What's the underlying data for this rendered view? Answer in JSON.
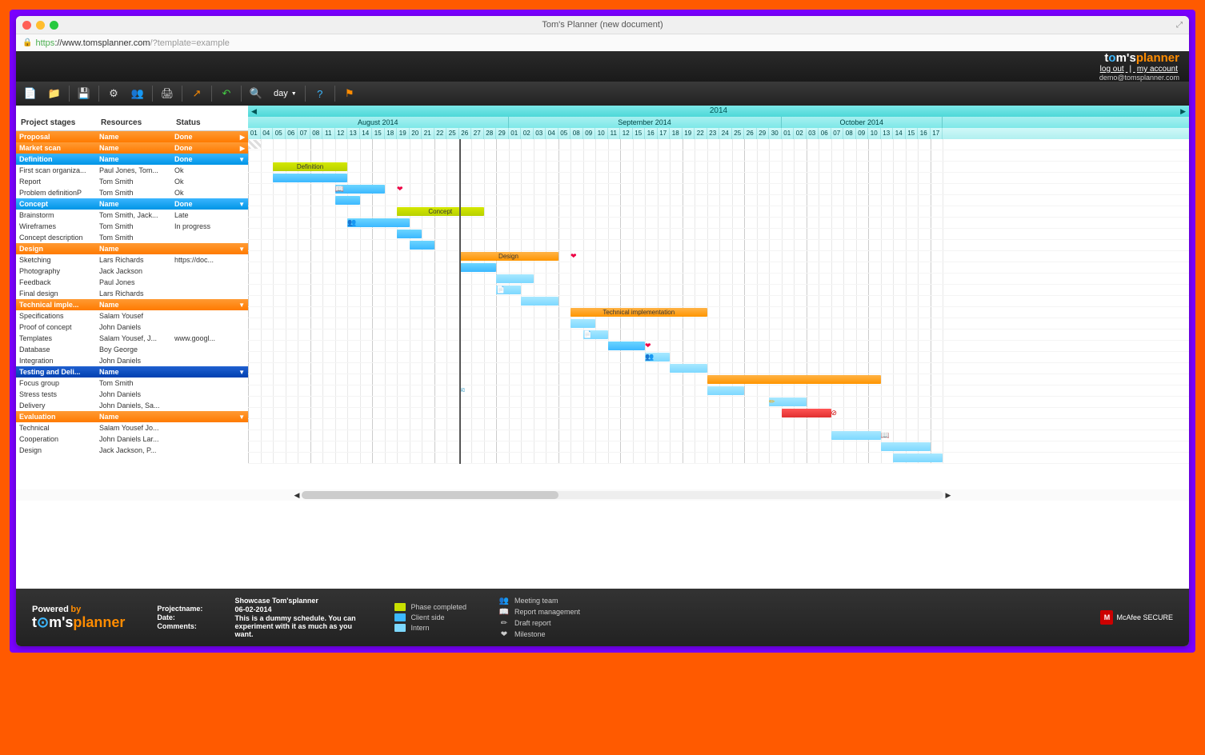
{
  "window": {
    "title": "Tom's Planner (new document)",
    "url_proto": "https",
    "url_host": "://www.tomsplanner.com",
    "url_path": "/?template=example"
  },
  "header": {
    "logo_t": "t",
    "logo_o": "o",
    "logo_ms": "m's",
    "logo_planner": "planner",
    "logout": "log out",
    "myaccount": "my account",
    "email": "demo@tomsplanner.com"
  },
  "toolbar": {
    "day_label": "day"
  },
  "sidebar": {
    "col_stages": "Project stages",
    "col_resources": "Resources",
    "col_status": "Status",
    "groups": [
      {
        "id": "proposal",
        "cls": "g-orange",
        "chev": "▶",
        "c1": "Proposal",
        "c2": "Name",
        "c3": "Done",
        "rows": []
      },
      {
        "id": "market",
        "cls": "g-orange",
        "chev": "▶",
        "c1": "Market scan",
        "c2": "Name",
        "c3": "Done",
        "rows": []
      },
      {
        "id": "definition",
        "cls": "g-blue",
        "chev": "▼",
        "c1": "Definition",
        "c2": "Name",
        "c3": "Done",
        "rows": [
          {
            "r1": "First scan organiza...",
            "r2": "Paul Jones, Tom...",
            "r3": "Ok"
          },
          {
            "r1": "Report",
            "r2": "Tom Smith",
            "r3": "Ok"
          },
          {
            "r1": "Problem definitionP",
            "r2": "Tom Smith",
            "r3": "Ok"
          }
        ]
      },
      {
        "id": "concept",
        "cls": "g-blue",
        "chev": "▼",
        "c1": "Concept",
        "c2": "Name",
        "c3": "Done",
        "rows": [
          {
            "r1": "Brainstorm",
            "r2": "Tom Smith, Jack...",
            "r3": "Late"
          },
          {
            "r1": "Wireframes",
            "r2": "Tom Smith",
            "r3": "In progress"
          },
          {
            "r1": "Concept description",
            "r2": "Tom Smith",
            "r3": ""
          }
        ]
      },
      {
        "id": "design",
        "cls": "g-orange",
        "chev": "▼",
        "c1": "Design",
        "c2": "Name",
        "c3": "",
        "rows": [
          {
            "r1": "Sketching",
            "r2": "Lars Richards",
            "r3": "https://doc..."
          },
          {
            "r1": "Photography",
            "r2": "Jack Jackson",
            "r3": ""
          },
          {
            "r1": "Feedback",
            "r2": "Paul Jones",
            "r3": ""
          },
          {
            "r1": "Final design",
            "r2": "Lars Richards",
            "r3": ""
          }
        ]
      },
      {
        "id": "tech",
        "cls": "g-orange",
        "chev": "▼",
        "c1": "Technical imple...",
        "c2": "Name",
        "c3": "",
        "rows": [
          {
            "r1": "Specifications",
            "r2": "Salam Yousef",
            "r3": ""
          },
          {
            "r1": "Proof of concept",
            "r2": "John Daniels",
            "r3": ""
          },
          {
            "r1": "Templates",
            "r2": "Salam Yousef, J...",
            "r3": "www.googl..."
          },
          {
            "r1": "Database",
            "r2": "Boy George",
            "r3": ""
          },
          {
            "r1": "Integration",
            "r2": "John Daniels",
            "r3": ""
          }
        ]
      },
      {
        "id": "testing",
        "cls": "g-dblue",
        "chev": "▼",
        "c1": "Testing and Deli...",
        "c2": "Name",
        "c3": "",
        "rows": [
          {
            "r1": "Focus group",
            "r2": "Tom Smith",
            "r3": ""
          },
          {
            "r1": "Stress tests",
            "r2": "John Daniels",
            "r3": ""
          },
          {
            "r1": "Delivery",
            "r2": "John Daniels, Sa...",
            "r3": ""
          }
        ]
      },
      {
        "id": "eval",
        "cls": "g-orange",
        "chev": "▼",
        "c1": "Evaluation",
        "c2": "Name",
        "c3": "",
        "rows": [
          {
            "r1": "Technical",
            "r2": "Salam Yousef Jo...",
            "r3": ""
          },
          {
            "r1": "Cooperation",
            "r2": "John Daniels Lar...",
            "r3": ""
          },
          {
            "r1": "Design",
            "r2": "Jack Jackson, P...",
            "r3": ""
          }
        ]
      }
    ]
  },
  "timeline": {
    "year": "2014",
    "months": [
      {
        "label": "August 2014",
        "span": 31
      },
      {
        "label": "September 2014",
        "span": 30
      },
      {
        "label": "October 2014",
        "span": 17
      }
    ],
    "days": [
      "01",
      "04",
      "05",
      "06",
      "07",
      "08",
      "11",
      "12",
      "13",
      "14",
      "15",
      "18",
      "19",
      "20",
      "21",
      "22",
      "25",
      "26",
      "27",
      "28",
      "29",
      "01",
      "02",
      "03",
      "04",
      "05",
      "08",
      "09",
      "10",
      "11",
      "12",
      "15",
      "16",
      "17",
      "18",
      "19",
      "22",
      "23",
      "24",
      "25",
      "26",
      "29",
      "30",
      "01",
      "02",
      "03",
      "06",
      "07",
      "08",
      "09",
      "10",
      "13",
      "14",
      "15",
      "16",
      "17"
    ],
    "today_col": 17,
    "day_width": 15.5,
    "gantt_rows": [
      {
        "type": "hdr"
      },
      {
        "type": "hdr"
      },
      {
        "type": "hdr",
        "bars": [
          {
            "cls": "bar-green",
            "start": 2,
            "len": 6,
            "label": "Definition"
          }
        ]
      },
      {
        "bars": [
          {
            "cls": "bar-cyan",
            "start": 2,
            "len": 6
          }
        ]
      },
      {
        "bars": [
          {
            "cls": "bar-cyan",
            "start": 7,
            "len": 4
          }
        ],
        "icons": [
          {
            "ico": "📖",
            "col": 7
          },
          {
            "ico": "❤",
            "col": 12,
            "color": "#e04"
          }
        ]
      },
      {
        "bars": [
          {
            "cls": "bar-cyan",
            "start": 7,
            "len": 2
          }
        ]
      },
      {
        "type": "hdr",
        "bars": [
          {
            "cls": "bar-green",
            "start": 12,
            "len": 7,
            "label": "Concept"
          }
        ]
      },
      {
        "bars": [
          {
            "cls": "bar-cyan",
            "start": 8,
            "len": 5
          }
        ],
        "icons": [
          {
            "ico": "👥",
            "col": 8
          }
        ]
      },
      {
        "bars": [
          {
            "cls": "bar-cyan",
            "start": 12,
            "len": 2
          }
        ]
      },
      {
        "bars": [
          {
            "cls": "bar-cyan",
            "start": 13,
            "len": 2
          }
        ]
      },
      {
        "type": "hdr",
        "bars": [
          {
            "cls": "bar-orange",
            "start": 17,
            "len": 8,
            "label": "Design"
          }
        ],
        "icons": [
          {
            "ico": "❤",
            "col": 26,
            "color": "#e04"
          }
        ]
      },
      {
        "bars": [
          {
            "cls": "bar-cyan",
            "start": 17,
            "len": 3
          }
        ]
      },
      {
        "bars": [
          {
            "cls": "bar-lcyan",
            "start": 20,
            "len": 3
          }
        ]
      },
      {
        "bars": [
          {
            "cls": "bar-lcyan",
            "start": 20,
            "len": 2
          }
        ],
        "icons": [
          {
            "ico": "📄",
            "col": 20
          }
        ]
      },
      {
        "bars": [
          {
            "cls": "bar-lcyan",
            "start": 22,
            "len": 3
          }
        ]
      },
      {
        "type": "hdr",
        "bars": [
          {
            "cls": "bar-orange",
            "start": 26,
            "len": 11,
            "label": "Technical implementation"
          }
        ]
      },
      {
        "bars": [
          {
            "cls": "bar-lcyan",
            "start": 26,
            "len": 2
          }
        ]
      },
      {
        "bars": [
          {
            "cls": "bar-lcyan",
            "start": 27,
            "len": 2
          }
        ],
        "icons": [
          {
            "ico": "📄",
            "col": 27
          }
        ]
      },
      {
        "bars": [
          {
            "cls": "bar-cyan",
            "start": 29,
            "len": 3
          }
        ],
        "icons": [
          {
            "ico": "❤",
            "col": 32,
            "color": "#e04"
          }
        ]
      },
      {
        "bars": [
          {
            "cls": "bar-lcyan",
            "start": 32,
            "len": 2
          }
        ],
        "icons": [
          {
            "ico": "👥",
            "col": 32
          }
        ]
      },
      {
        "bars": [
          {
            "cls": "bar-lcyan",
            "start": 34,
            "len": 3
          }
        ]
      },
      {
        "type": "hdr",
        "bars": [
          {
            "cls": "bar-orange",
            "start": 37,
            "len": 14,
            "label": ""
          }
        ]
      },
      {
        "bars": [
          {
            "cls": "bar-lcyan",
            "start": 37,
            "len": 3
          }
        ],
        "icons": [
          {
            "ico": "✉",
            "col": 17,
            "color": "#5ac"
          }
        ]
      },
      {
        "bars": [
          {
            "cls": "bar-lcyan",
            "start": 42,
            "len": 3
          }
        ],
        "icons": [
          {
            "ico": "✏",
            "col": 42,
            "color": "#fa0"
          }
        ]
      },
      {
        "bars": [
          {
            "cls": "bar-red",
            "start": 43,
            "len": 4
          }
        ],
        "icons": [
          {
            "ico": "⊘",
            "col": 47,
            "color": "#c00"
          }
        ]
      },
      {
        "type": "hdr"
      },
      {
        "bars": [
          {
            "cls": "bar-lcyan",
            "start": 47,
            "len": 4
          }
        ],
        "icons": [
          {
            "ico": "📖",
            "col": 51
          }
        ]
      },
      {
        "bars": [
          {
            "cls": "bar-lcyan",
            "start": 51,
            "len": 4
          }
        ]
      },
      {
        "bars": [
          {
            "cls": "bar-lcyan",
            "start": 52,
            "len": 4
          }
        ]
      }
    ]
  },
  "footer": {
    "powered": "Powered",
    "by": "by",
    "meta": {
      "projectname_l": "Projectname:",
      "projectname_v": "Showcase Tom'splanner",
      "date_l": "Date:",
      "date_v": "06-02-2014",
      "comments_l": "Comments:",
      "comments_v": "This is a dummy schedule. You can experiment with it as much as you want."
    },
    "legend1": [
      {
        "color": "#c8e000",
        "label": "Phase completed"
      },
      {
        "color": "#3cb8ff",
        "label": "Client side"
      },
      {
        "color": "#7dd8ff",
        "label": "Intern"
      }
    ],
    "legend2": [
      {
        "ico": "👥",
        "label": "Meeting team"
      },
      {
        "ico": "📖",
        "label": "Report management"
      },
      {
        "ico": "✏",
        "label": "Draft report"
      },
      {
        "ico": "❤",
        "label": "Milestone"
      }
    ],
    "mcafee": "McAfee SECURE"
  }
}
